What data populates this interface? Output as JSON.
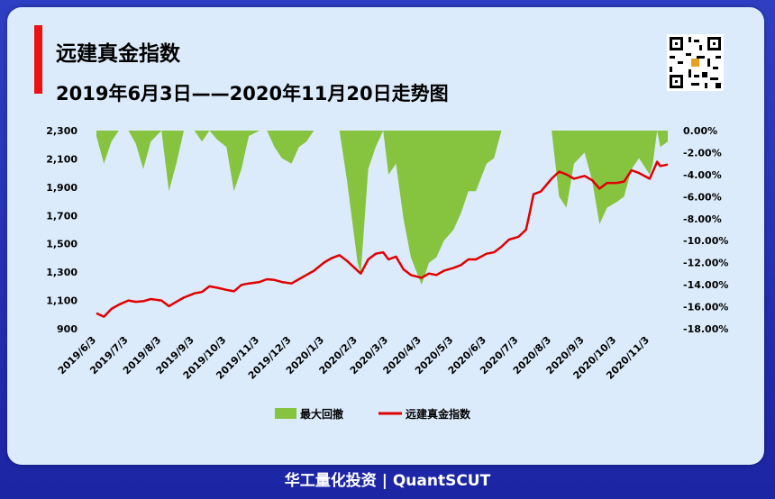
{
  "title": {
    "line1": "远建真金指数",
    "line2": "2019年6月3日——2020年11月20日走势图"
  },
  "qr_code": "qr-code-icon",
  "footer": "华工量化投资 | QuantSCUT",
  "colors": {
    "background": "#2430b8",
    "card": "#dcebfb",
    "title_bar": "#ee1111",
    "index_line": "#e00000",
    "drawdown_area": "#86c43f"
  },
  "chart_data": {
    "type": "line",
    "title": "",
    "legend_position": "bottom-center",
    "grid": false,
    "x_ticks": [
      "2019/6/3",
      "2019/7/3",
      "2019/8/3",
      "2019/9/3",
      "2019/10/3",
      "2019/11/3",
      "2019/12/3",
      "2020/1/3",
      "2020/2/3",
      "2020/3/3",
      "2020/4/3",
      "2020/5/3",
      "2020/6/3",
      "2020/7/3",
      "2020/8/3",
      "2020/9/3",
      "2020/10/3",
      "2020/11/3"
    ],
    "x_range": [
      "2019-06-03",
      "2020-11-20"
    ],
    "y_left": {
      "ticks": [
        "900",
        "1,100",
        "1,300",
        "1,500",
        "1,700",
        "1,900",
        "2,100",
        "2,300"
      ],
      "range": [
        900,
        2300
      ]
    },
    "y_right": {
      "ticks": [
        "0.00%",
        "-2.00%",
        "-4.00%",
        "-6.00%",
        "-8.00%",
        "-10.00%",
        "-12.00%",
        "-14.00%",
        "-16.00%",
        "-18.00%"
      ],
      "range": [
        -18,
        0
      ]
    },
    "series": [
      {
        "name": "远建真金指数",
        "axis": "left",
        "kind": "line",
        "x": [
          "2019-06-03",
          "2019-06-10",
          "2019-06-17",
          "2019-06-24",
          "2019-07-03",
          "2019-07-10",
          "2019-07-17",
          "2019-07-24",
          "2019-08-03",
          "2019-08-10",
          "2019-08-17",
          "2019-08-24",
          "2019-09-03",
          "2019-09-10",
          "2019-09-17",
          "2019-09-24",
          "2019-10-03",
          "2019-10-10",
          "2019-10-17",
          "2019-10-24",
          "2019-11-03",
          "2019-11-10",
          "2019-11-17",
          "2019-11-24",
          "2019-12-03",
          "2019-12-10",
          "2019-12-17",
          "2019-12-24",
          "2020-01-03",
          "2020-01-10",
          "2020-01-17",
          "2020-01-24",
          "2020-02-03",
          "2020-02-06",
          "2020-02-13",
          "2020-02-20",
          "2020-02-27",
          "2020-03-03",
          "2020-03-10",
          "2020-03-17",
          "2020-03-24",
          "2020-04-03",
          "2020-04-10",
          "2020-04-17",
          "2020-04-24",
          "2020-05-03",
          "2020-05-10",
          "2020-05-17",
          "2020-05-24",
          "2020-06-03",
          "2020-06-10",
          "2020-06-17",
          "2020-06-24",
          "2020-07-03",
          "2020-07-10",
          "2020-07-13",
          "2020-07-17",
          "2020-07-24",
          "2020-08-03",
          "2020-08-10",
          "2020-08-17",
          "2020-08-24",
          "2020-09-03",
          "2020-09-10",
          "2020-09-17",
          "2020-09-24",
          "2020-10-03",
          "2020-10-10",
          "2020-10-17",
          "2020-10-24",
          "2020-11-03",
          "2020-11-06",
          "2020-11-10",
          "2020-11-13",
          "2020-11-20"
        ],
        "values": [
          1010,
          985,
          1040,
          1070,
          1100,
          1090,
          1095,
          1110,
          1100,
          1060,
          1090,
          1120,
          1150,
          1160,
          1200,
          1190,
          1175,
          1165,
          1210,
          1220,
          1230,
          1250,
          1245,
          1230,
          1220,
          1250,
          1280,
          1310,
          1370,
          1400,
          1420,
          1380,
          1310,
          1290,
          1390,
          1430,
          1440,
          1390,
          1410,
          1320,
          1280,
          1260,
          1290,
          1280,
          1310,
          1330,
          1350,
          1390,
          1390,
          1430,
          1440,
          1480,
          1530,
          1550,
          1600,
          1700,
          1850,
          1870,
          1960,
          2010,
          1990,
          1960,
          1980,
          1950,
          1890,
          1930,
          1930,
          1940,
          2020,
          2000,
          1960,
          2010,
          2080,
          2050,
          2060
        ]
      },
      {
        "name": "最大回撤",
        "axis": "right",
        "kind": "area",
        "x": [
          "2019-06-03",
          "2019-06-10",
          "2019-06-17",
          "2019-06-24",
          "2019-07-03",
          "2019-07-10",
          "2019-07-17",
          "2019-07-24",
          "2019-08-03",
          "2019-08-10",
          "2019-08-17",
          "2019-08-24",
          "2019-09-03",
          "2019-09-10",
          "2019-09-17",
          "2019-09-24",
          "2019-10-03",
          "2019-10-10",
          "2019-10-17",
          "2019-10-24",
          "2019-11-03",
          "2019-11-10",
          "2019-11-17",
          "2019-11-24",
          "2019-12-03",
          "2019-12-10",
          "2019-12-17",
          "2019-12-24",
          "2020-01-03",
          "2020-01-10",
          "2020-01-17",
          "2020-01-24",
          "2020-02-03",
          "2020-02-06",
          "2020-02-13",
          "2020-02-20",
          "2020-02-27",
          "2020-03-03",
          "2020-03-10",
          "2020-03-17",
          "2020-03-24",
          "2020-04-03",
          "2020-04-10",
          "2020-04-17",
          "2020-04-24",
          "2020-05-03",
          "2020-05-10",
          "2020-05-17",
          "2020-05-24",
          "2020-06-03",
          "2020-06-10",
          "2020-06-17",
          "2020-06-24",
          "2020-07-03",
          "2020-07-10",
          "2020-07-13",
          "2020-07-17",
          "2020-07-24",
          "2020-08-03",
          "2020-08-10",
          "2020-08-17",
          "2020-08-24",
          "2020-09-03",
          "2020-09-10",
          "2020-09-17",
          "2020-09-24",
          "2020-10-03",
          "2020-10-10",
          "2020-10-17",
          "2020-10-24",
          "2020-11-03",
          "2020-11-06",
          "2020-11-10",
          "2020-11-13",
          "2020-11-20"
        ],
        "values": [
          -0.5,
          -3.0,
          -1.0,
          0.0,
          0.0,
          -1.2,
          -3.5,
          -1.0,
          0.0,
          -5.5,
          -3.0,
          0.0,
          0.0,
          -1.0,
          0.0,
          -0.8,
          -1.5,
          -5.5,
          -3.5,
          -0.5,
          0.0,
          0.0,
          -1.5,
          -2.5,
          -3.0,
          -1.5,
          -1.0,
          0.0,
          0.0,
          0.0,
          0.0,
          -4.5,
          -12.0,
          -13.0,
          -3.5,
          -1.5,
          0.0,
          -4.0,
          -3.0,
          -8.0,
          -11.5,
          -14.0,
          -12.0,
          -11.5,
          -10.0,
          -9.0,
          -7.5,
          -5.5,
          -5.5,
          -3.0,
          -2.5,
          0.0,
          0.0,
          0.0,
          0.0,
          0.0,
          0.0,
          0.0,
          0.0,
          -6.0,
          -7.0,
          -3.0,
          -2.0,
          -4.5,
          -8.5,
          -7.0,
          -6.5,
          -6.0,
          -3.5,
          -2.5,
          -4.0,
          -3.0,
          0.0,
          -1.5,
          -1.0
        ]
      }
    ]
  }
}
